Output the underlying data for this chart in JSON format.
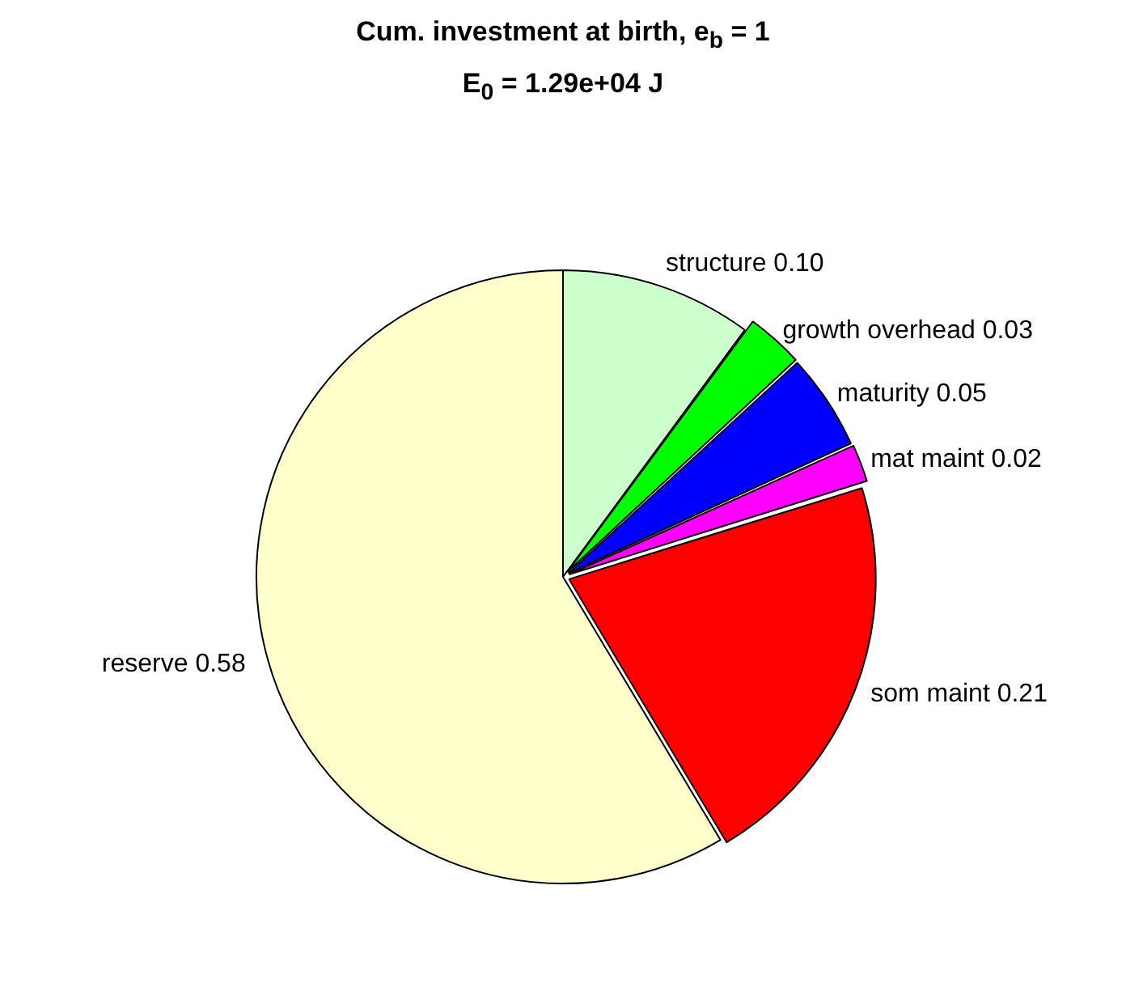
{
  "chart_data": {
    "type": "pie",
    "title": "Cum. investment at birth, e$_{b}$ = 1",
    "subtitle": "E$_{0}$ = 1.29e+04 J",
    "categories": [
      "structure",
      "growth overhead",
      "maturity",
      "mat maint",
      "som maint",
      "reserve"
    ],
    "values": [
      0.1,
      0.03,
      0.05,
      0.02,
      0.21,
      0.58
    ],
    "value_labels": [
      "0.10",
      "0.03",
      "0.05",
      "0.02",
      "0.21",
      "0.58"
    ],
    "colors": [
      "#ccffcc",
      "#00ff00",
      "#0000ff",
      "#ff00ff",
      "#ff0000",
      "#ffffcc"
    ],
    "legend": false
  }
}
